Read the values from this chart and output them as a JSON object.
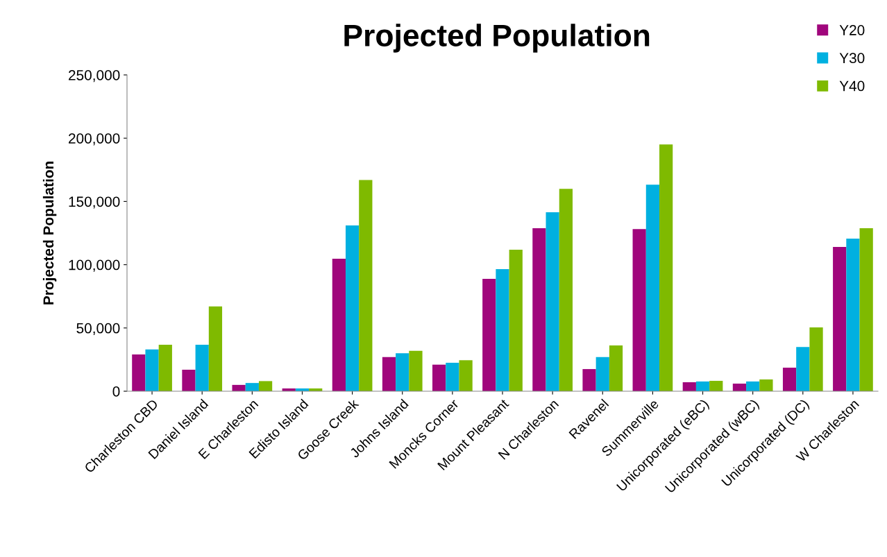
{
  "chart_data": {
    "type": "bar",
    "title": "Projected Population",
    "ylabel": "Projected Population",
    "categories": [
      "Charleston CBD",
      "Daniel Island",
      "E Charleston",
      "Edisto Island",
      "Goose Creek",
      "Johns Island",
      "Moncks Corner",
      "Mount Pleasant",
      "N Charleston",
      "Ravenel",
      "Summerville",
      "Unicorporated (eBC)",
      "Unicorporated (wBC)",
      "Unicorporated (DC)",
      "W Charleston"
    ],
    "series": [
      {
        "name": "Y20",
        "color": "#a0067c",
        "values": [
          29000,
          17000,
          5000,
          2200,
          104700,
          27000,
          21000,
          88800,
          128800,
          17500,
          128200,
          7100,
          6000,
          18600,
          114000
        ]
      },
      {
        "name": "Y30",
        "color": "#00b0e0",
        "values": [
          33000,
          36700,
          6500,
          2200,
          131000,
          30000,
          22500,
          96500,
          141400,
          27000,
          163300,
          7700,
          7700,
          35000,
          120600
        ]
      },
      {
        "name": "Y40",
        "color": "#7fba00",
        "values": [
          36700,
          67000,
          8000,
          2200,
          167000,
          32000,
          24500,
          111800,
          160000,
          36200,
          195000,
          8200,
          9300,
          50400,
          128800
        ]
      }
    ],
    "ylim": [
      0,
      250000
    ],
    "yticks": [
      {
        "value": 0,
        "label": "0"
      },
      {
        "value": 50000,
        "label": "50,000"
      },
      {
        "value": 100000,
        "label": "100,000"
      },
      {
        "value": 150000,
        "label": "150,000"
      },
      {
        "value": 200000,
        "label": "200,000"
      },
      {
        "value": 250000,
        "label": "250,000"
      }
    ],
    "legend": "top right",
    "grid": false
  }
}
